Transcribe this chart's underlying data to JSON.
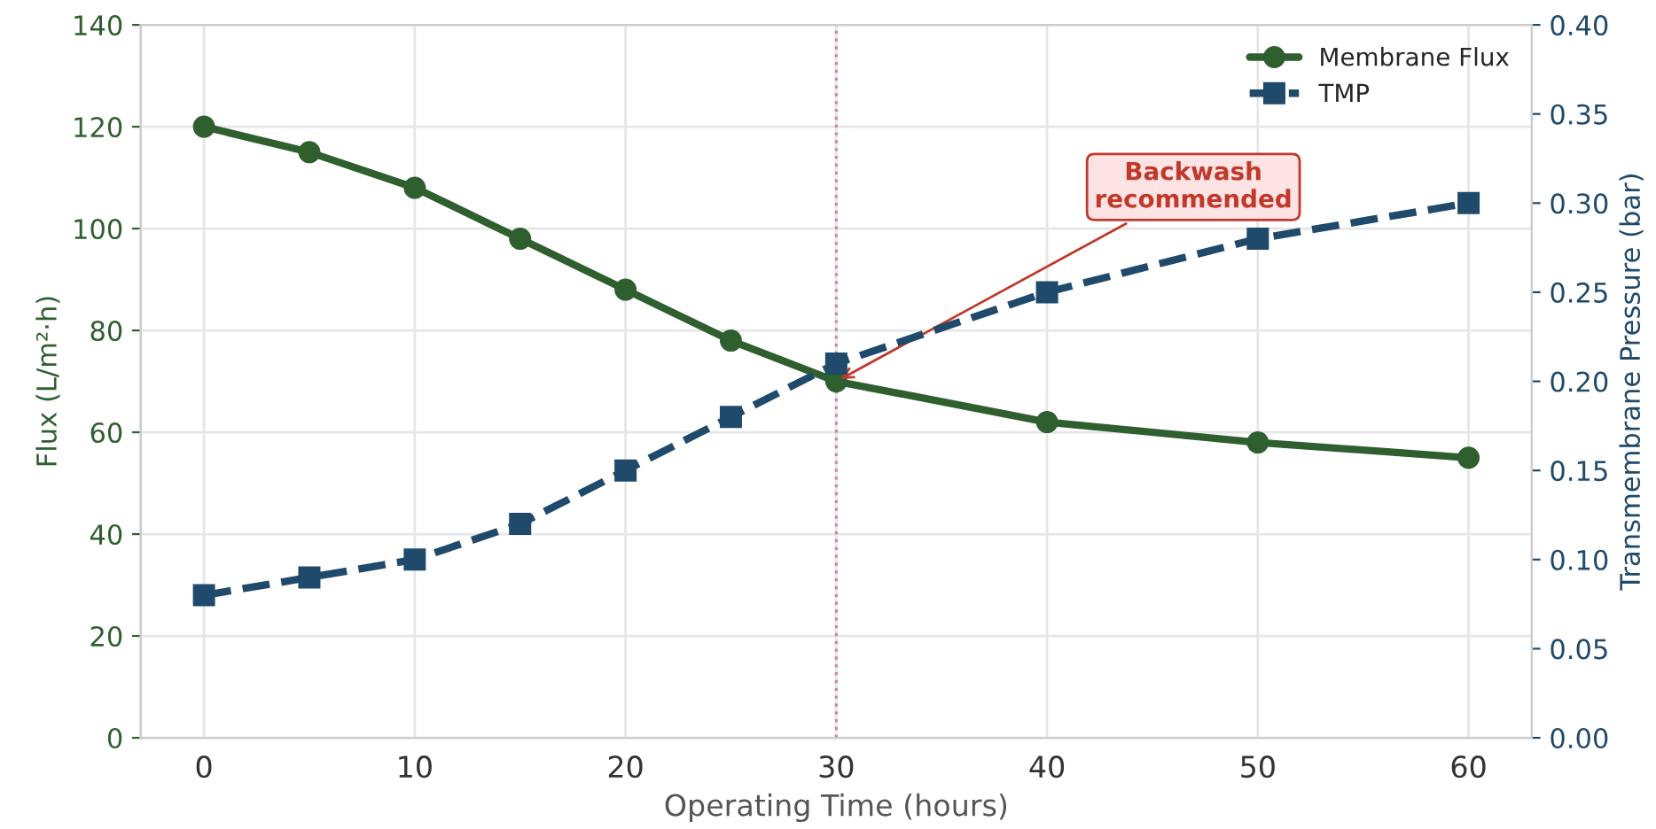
{
  "chart_data": {
    "type": "line",
    "xlabel": "Operating Time (hours)",
    "ylabel": "Flux (L/m²·h)",
    "y2label": "Transmembrane Pressure (bar)",
    "x": [
      0,
      5,
      10,
      15,
      20,
      25,
      30,
      40,
      50,
      60
    ],
    "series": [
      {
        "name": "Membrane Flux",
        "color": "#2f5f2f",
        "values": [
          120,
          115,
          108,
          98,
          88,
          78,
          70,
          62,
          58,
          55
        ],
        "marker": "circle",
        "line_style": "solid"
      },
      {
        "name": "TMP",
        "color": "#1f4a6b",
        "values": [
          0.08,
          0.09,
          0.1,
          0.12,
          0.15,
          0.18,
          0.21,
          0.25,
          0.28,
          0.3
        ],
        "axis": "y2",
        "marker": "square",
        "line_style": "dashed"
      }
    ],
    "xlim": [
      -3,
      63
    ],
    "xticks": [
      0,
      10,
      20,
      30,
      40,
      50,
      60
    ],
    "ylim": [
      0,
      140
    ],
    "yticks": [
      0,
      20,
      40,
      60,
      80,
      100,
      120,
      140
    ],
    "y2lim": [
      0,
      0.4
    ],
    "y2ticks": [
      {
        "value": 0,
        "label": "0.00"
      },
      {
        "value": 0.05,
        "label": "0.05"
      },
      {
        "value": 0.1,
        "label": "0.10"
      },
      {
        "value": 0.15,
        "label": "0.15"
      },
      {
        "value": 0.2,
        "label": "0.20"
      },
      {
        "value": 0.25,
        "label": "0.25"
      },
      {
        "value": 0.3,
        "label": "0.30"
      },
      {
        "value": 0.35,
        "label": "0.35"
      },
      {
        "value": 0.4,
        "label": "0.40"
      }
    ],
    "ref_lines": [
      {
        "axis": "x",
        "value": 30,
        "color": "#c98a9a",
        "line_style": "dotted"
      }
    ],
    "annotations": [
      {
        "text": "Backwash\nrecommended",
        "x": 30,
        "y": 70
      }
    ],
    "grid": true,
    "legend": "top right"
  }
}
